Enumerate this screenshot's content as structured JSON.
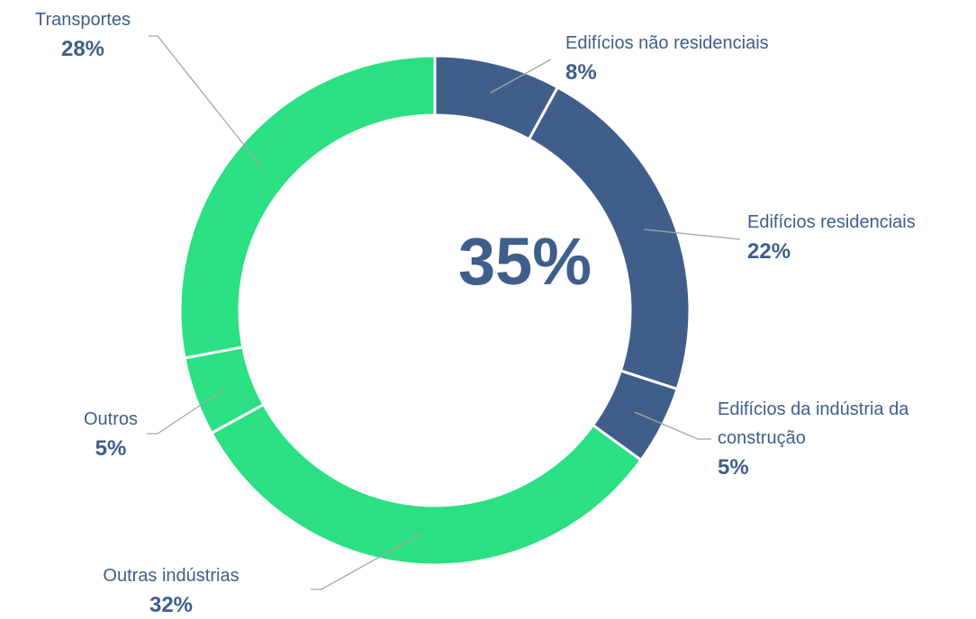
{
  "chart_data": {
    "type": "donut",
    "categories": [
      "Edifícios não residenciais",
      "Edifícios residenciais",
      "Edifícios da indústria da construção",
      "Outras indústrias",
      "Outros",
      "Transportes"
    ],
    "values": [
      8,
      22,
      5,
      32,
      5,
      28
    ],
    "value_labels": [
      "8%",
      "22%",
      "5%",
      "32%",
      "5%",
      "28%"
    ],
    "colors": [
      "#3f5e8a",
      "#3f5e8a",
      "#3f5e8a",
      "#2ae082",
      "#2ae082",
      "#2ae082"
    ],
    "center_label": "35%"
  }
}
